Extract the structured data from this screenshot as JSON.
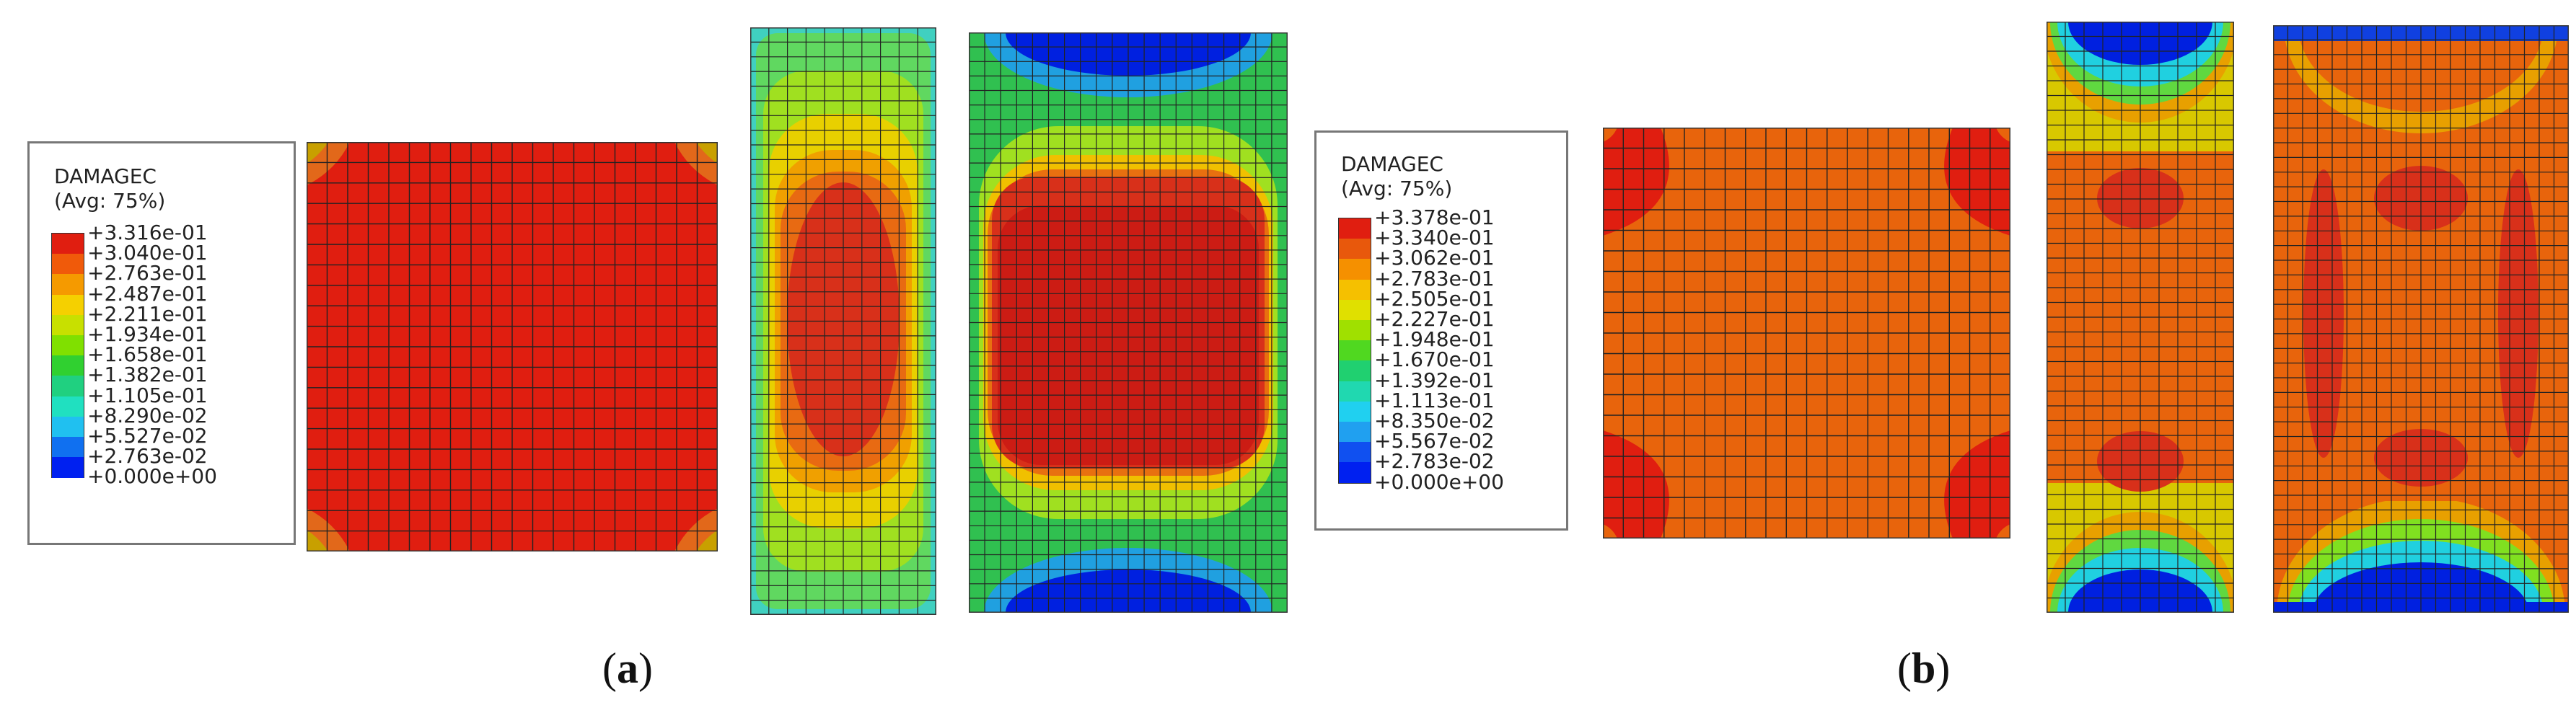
{
  "panels": [
    {
      "label": "a",
      "legend": {
        "title": "DAMAGEC",
        "subtitle": "(Avg: 75%)",
        "values": [
          "+3.316e-01",
          "+3.040e-01",
          "+2.763e-01",
          "+2.487e-01",
          "+2.211e-01",
          "+1.934e-01",
          "+1.658e-01",
          "+1.382e-01",
          "+1.105e-01",
          "+8.290e-02",
          "+5.527e-02",
          "+2.763e-02",
          "+0.000e+00"
        ],
        "colors": [
          "#e01e10",
          "#f05a0a",
          "#f59a00",
          "#f5d000",
          "#c8e000",
          "#80e000",
          "#30d030",
          "#20d080",
          "#20e0c0",
          "#20c0f0",
          "#1070f0",
          "#0020f0"
        ]
      }
    },
    {
      "label": "b",
      "legend": {
        "title": "DAMAGEC",
        "subtitle": "(Avg: 75%)",
        "values": [
          "+3.378e-01",
          "+3.340e-01",
          "+3.062e-01",
          "+2.783e-01",
          "+2.505e-01",
          "+2.227e-01",
          "+1.948e-01",
          "+1.670e-01",
          "+1.392e-01",
          "+1.113e-01",
          "+8.350e-02",
          "+5.567e-02",
          "+2.783e-02",
          "+0.000e+00"
        ],
        "colors": [
          "#e01e10",
          "#e8580c",
          "#f59000",
          "#f5c000",
          "#e0e000",
          "#a0e000",
          "#50d820",
          "#20d070",
          "#20d8b0",
          "#20d0f0",
          "#20a0f0",
          "#1050f0",
          "#0020f0"
        ]
      }
    }
  ]
}
